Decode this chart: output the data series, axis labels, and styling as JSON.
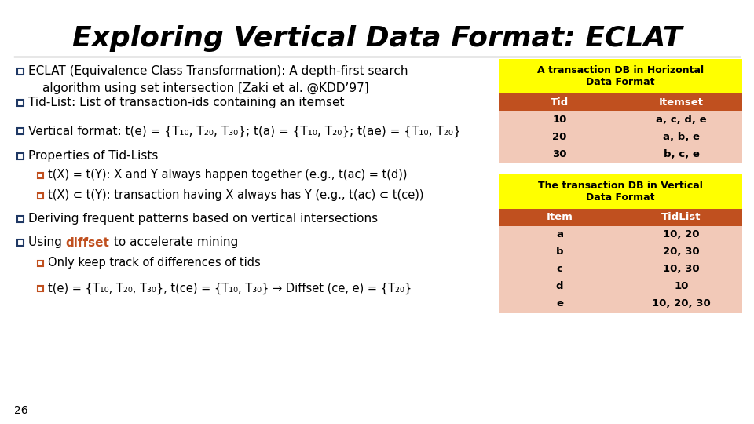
{
  "title": "Exploring Vertical Data Format: ECLAT",
  "title_fontsize": 26,
  "slide_number": "26",
  "bg_color": "#ffffff",
  "title_color": "#000000",
  "text_color": "#000000",
  "bullet_color_l0": "#1f3864",
  "bullet_color_l1": "#c0501f",
  "diffset_color": "#c0501f",
  "bullets": [
    {
      "level": 0,
      "text": "ECLAT (Equivalence Class Transformation): A depth-first search\n    algorithm using set intersection [Zaki et al. @KDD’97]"
    },
    {
      "level": 0,
      "text": "Tid-List: List of transaction-ids containing an itemset"
    },
    {
      "level": 0,
      "text": "Vertical format: t(e) = {T₁₀, T₂₀, T₃₀}; t(a) = {T₁₀, T₂₀}; t(ae) = {T₁₀, T₂₀}"
    },
    {
      "level": 0,
      "text": "Properties of Tid-Lists"
    },
    {
      "level": 1,
      "text": "t(X) = t(Y): X and Y always happen together (e.g., t(ac) = t(d))"
    },
    {
      "level": 1,
      "text": "t(X) ⊂ t(Y): transaction having X always has Y (e.g., t(ac) ⊂ t(ce))"
    },
    {
      "level": 0,
      "text": "Deriving frequent patterns based on vertical intersections"
    },
    {
      "level": 0,
      "text": "Using diffset to accelerate mining",
      "has_diffset": true
    },
    {
      "level": 1,
      "text": "Only keep track of differences of tids"
    },
    {
      "level": 1,
      "text": "t(e) = {T₁₀, T₂₀, T₃₀}, t(ce) = {T₁₀, T₃₀} → Diffset (ce, e) = {T₂₀}"
    }
  ],
  "table1_title": "A transaction DB in Horizontal\nData Format",
  "table1_title_bg": "#ffff00",
  "table1_header_bg": "#c0501f",
  "table1_header_color": "#ffffff",
  "table1_row_bg": "#f2c9b8",
  "table1_headers": [
    "Tid",
    "Itemset"
  ],
  "table1_rows": [
    [
      "10",
      "a, c, d, e"
    ],
    [
      "20",
      "a, b, e"
    ],
    [
      "30",
      "b, c, e"
    ]
  ],
  "table2_title": "The transaction DB in Vertical\nData Format",
  "table2_title_bg": "#ffff00",
  "table2_header_bg": "#c0501f",
  "table2_header_color": "#ffffff",
  "table2_row_bg": "#f2c9b8",
  "table2_headers": [
    "Item",
    "TidList"
  ],
  "table2_rows": [
    [
      "a",
      "10, 20"
    ],
    [
      "b",
      "20, 30"
    ],
    [
      "c",
      "10, 30"
    ],
    [
      "d",
      "10"
    ],
    [
      "e",
      "10, 20, 30"
    ]
  ]
}
